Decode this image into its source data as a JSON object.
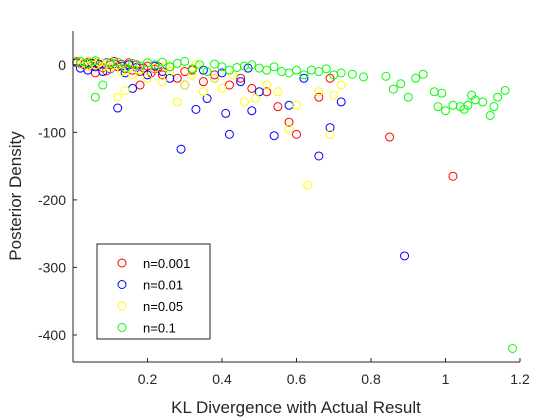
{
  "chart_data": {
    "type": "scatter",
    "xlabel": "KL Divergence with Actual Result",
    "ylabel": "Posterior Density",
    "xlim": [
      0,
      1.2
    ],
    "ylim": [
      -440,
      50
    ],
    "xticks": [
      0.2,
      0.4,
      0.6,
      0.8,
      1,
      1.2
    ],
    "xtick_labels": [
      "0.2",
      "0.4",
      "0.6",
      "0.8",
      "1",
      "1.2"
    ],
    "yticks": [
      0,
      -100,
      -200,
      -300,
      -400
    ],
    "ytick_labels": [
      "0",
      "-100",
      "-200",
      "-300",
      "-400"
    ],
    "grid": false,
    "legend_position": "bottom-left",
    "marker": "open-circle",
    "series": [
      {
        "name": "n=0.001",
        "color": "#ff0000",
        "points": [
          [
            0.01,
            5
          ],
          [
            0.02,
            2
          ],
          [
            0.03,
            0
          ],
          [
            0.04,
            4
          ],
          [
            0.05,
            -2
          ],
          [
            0.06,
            3
          ],
          [
            0.07,
            1
          ],
          [
            0.08,
            -4
          ],
          [
            0.09,
            2
          ],
          [
            0.1,
            0
          ],
          [
            0.11,
            5
          ],
          [
            0.12,
            -3
          ],
          [
            0.13,
            1
          ],
          [
            0.14,
            -6
          ],
          [
            0.15,
            3
          ],
          [
            0.16,
            -8
          ],
          [
            0.17,
            0
          ],
          [
            0.18,
            -10
          ],
          [
            0.19,
            -5
          ],
          [
            0.2,
            -2
          ],
          [
            0.21,
            -12
          ],
          [
            0.22,
            -6
          ],
          [
            0.24,
            -15
          ],
          [
            0.26,
            -3
          ],
          [
            0.28,
            -20
          ],
          [
            0.3,
            -10
          ],
          [
            0.32,
            -8
          ],
          [
            0.35,
            -25
          ],
          [
            0.38,
            -15
          ],
          [
            0.42,
            -30
          ],
          [
            0.45,
            -20
          ],
          [
            0.48,
            -35
          ],
          [
            0.52,
            -40
          ],
          [
            0.55,
            -62
          ],
          [
            0.58,
            -85
          ],
          [
            0.6,
            -103
          ],
          [
            0.66,
            -48
          ],
          [
            0.69,
            -20
          ],
          [
            0.85,
            -107
          ],
          [
            1.02,
            -165
          ],
          [
            0.06,
            -12
          ],
          [
            0.09,
            -9
          ],
          [
            0.18,
            -30
          ],
          [
            0.23,
            -3
          ]
        ]
      },
      {
        "name": "n=0.01",
        "color": "#0000ff",
        "points": [
          [
            0.01,
            3
          ],
          [
            0.02,
            -5
          ],
          [
            0.03,
            1
          ],
          [
            0.04,
            -8
          ],
          [
            0.05,
            2
          ],
          [
            0.06,
            -3
          ],
          [
            0.07,
            0
          ],
          [
            0.08,
            -10
          ],
          [
            0.09,
            3
          ],
          [
            0.1,
            -6
          ],
          [
            0.11,
            1
          ],
          [
            0.12,
            -64
          ],
          [
            0.13,
            -2
          ],
          [
            0.14,
            -12
          ],
          [
            0.15,
            0
          ],
          [
            0.16,
            -35
          ],
          [
            0.17,
            -4
          ],
          [
            0.18,
            -8
          ],
          [
            0.2,
            -15
          ],
          [
            0.22,
            -2
          ],
          [
            0.24,
            -10
          ],
          [
            0.26,
            -20
          ],
          [
            0.29,
            -125
          ],
          [
            0.3,
            -30
          ],
          [
            0.33,
            -66
          ],
          [
            0.36,
            -50
          ],
          [
            0.38,
            -20
          ],
          [
            0.41,
            -72
          ],
          [
            0.42,
            -103
          ],
          [
            0.45,
            -25
          ],
          [
            0.48,
            -68
          ],
          [
            0.5,
            -40
          ],
          [
            0.54,
            -105
          ],
          [
            0.58,
            -60
          ],
          [
            0.62,
            -20
          ],
          [
            0.66,
            -135
          ],
          [
            0.69,
            -93
          ],
          [
            0.72,
            -55
          ],
          [
            0.89,
            -283
          ],
          [
            0.35,
            -8
          ],
          [
            0.4,
            -12
          ],
          [
            0.47,
            -5
          ]
        ]
      },
      {
        "name": "n=0.05",
        "color": "#ffff00",
        "points": [
          [
            0.01,
            6
          ],
          [
            0.02,
            1
          ],
          [
            0.03,
            3
          ],
          [
            0.04,
            -2
          ],
          [
            0.05,
            5
          ],
          [
            0.06,
            0
          ],
          [
            0.07,
            4
          ],
          [
            0.08,
            -3
          ],
          [
            0.09,
            2
          ],
          [
            0.1,
            -5
          ],
          [
            0.11,
            0
          ],
          [
            0.12,
            -48
          ],
          [
            0.13,
            -10
          ],
          [
            0.14,
            -38
          ],
          [
            0.15,
            -4
          ],
          [
            0.16,
            -15
          ],
          [
            0.18,
            -8
          ],
          [
            0.2,
            -20
          ],
          [
            0.22,
            -5
          ],
          [
            0.24,
            -25
          ],
          [
            0.26,
            -10
          ],
          [
            0.28,
            -55
          ],
          [
            0.3,
            -30
          ],
          [
            0.32,
            -15
          ],
          [
            0.35,
            -40
          ],
          [
            0.38,
            -20
          ],
          [
            0.4,
            -35
          ],
          [
            0.43,
            -15
          ],
          [
            0.46,
            -55
          ],
          [
            0.49,
            -50
          ],
          [
            0.52,
            -30
          ],
          [
            0.55,
            -40
          ],
          [
            0.58,
            -95
          ],
          [
            0.6,
            -60
          ],
          [
            0.63,
            -178
          ],
          [
            0.66,
            -40
          ],
          [
            0.69,
            -103
          ],
          [
            0.7,
            -45
          ],
          [
            0.72,
            -30
          ],
          [
            0.25,
            -2
          ],
          [
            0.33,
            0
          ]
        ]
      },
      {
        "name": "n=0.1",
        "color": "#00ff00",
        "points": [
          [
            0.02,
            5
          ],
          [
            0.04,
            2
          ],
          [
            0.06,
            6
          ],
          [
            0.08,
            -30
          ],
          [
            0.1,
            3
          ],
          [
            0.12,
            4
          ],
          [
            0.14,
            -5
          ],
          [
            0.16,
            2
          ],
          [
            0.18,
            -2
          ],
          [
            0.2,
            3
          ],
          [
            0.22,
            0
          ],
          [
            0.24,
            4
          ],
          [
            0.26,
            -3
          ],
          [
            0.28,
            2
          ],
          [
            0.3,
            5
          ],
          [
            0.32,
            -6
          ],
          [
            0.34,
            0
          ],
          [
            0.36,
            -10
          ],
          [
            0.38,
            1
          ],
          [
            0.4,
            -3
          ],
          [
            0.42,
            -8
          ],
          [
            0.44,
            -4
          ],
          [
            0.46,
            -2
          ],
          [
            0.48,
            0
          ],
          [
            0.5,
            -5
          ],
          [
            0.52,
            -8
          ],
          [
            0.54,
            -3
          ],
          [
            0.56,
            -10
          ],
          [
            0.58,
            -12
          ],
          [
            0.6,
            -8
          ],
          [
            0.62,
            -15
          ],
          [
            0.64,
            -8
          ],
          [
            0.66,
            -10
          ],
          [
            0.68,
            -6
          ],
          [
            0.7,
            -15
          ],
          [
            0.72,
            -12
          ],
          [
            0.75,
            -14
          ],
          [
            0.78,
            -18
          ],
          [
            0.84,
            -17
          ],
          [
            0.86,
            -36
          ],
          [
            0.88,
            -28
          ],
          [
            0.9,
            -48
          ],
          [
            0.92,
            -20
          ],
          [
            0.94,
            -14
          ],
          [
            0.97,
            -40
          ],
          [
            0.98,
            -62
          ],
          [
            0.99,
            -42
          ],
          [
            1.0,
            -68
          ],
          [
            1.02,
            -60
          ],
          [
            1.04,
            -62
          ],
          [
            1.05,
            -66
          ],
          [
            1.06,
            -60
          ],
          [
            1.07,
            -45
          ],
          [
            1.08,
            -52
          ],
          [
            1.1,
            -55
          ],
          [
            1.12,
            -75
          ],
          [
            1.13,
            -62
          ],
          [
            1.14,
            -48
          ],
          [
            1.16,
            -38
          ],
          [
            1.18,
            -420
          ],
          [
            0.06,
            -48
          ]
        ]
      }
    ]
  }
}
